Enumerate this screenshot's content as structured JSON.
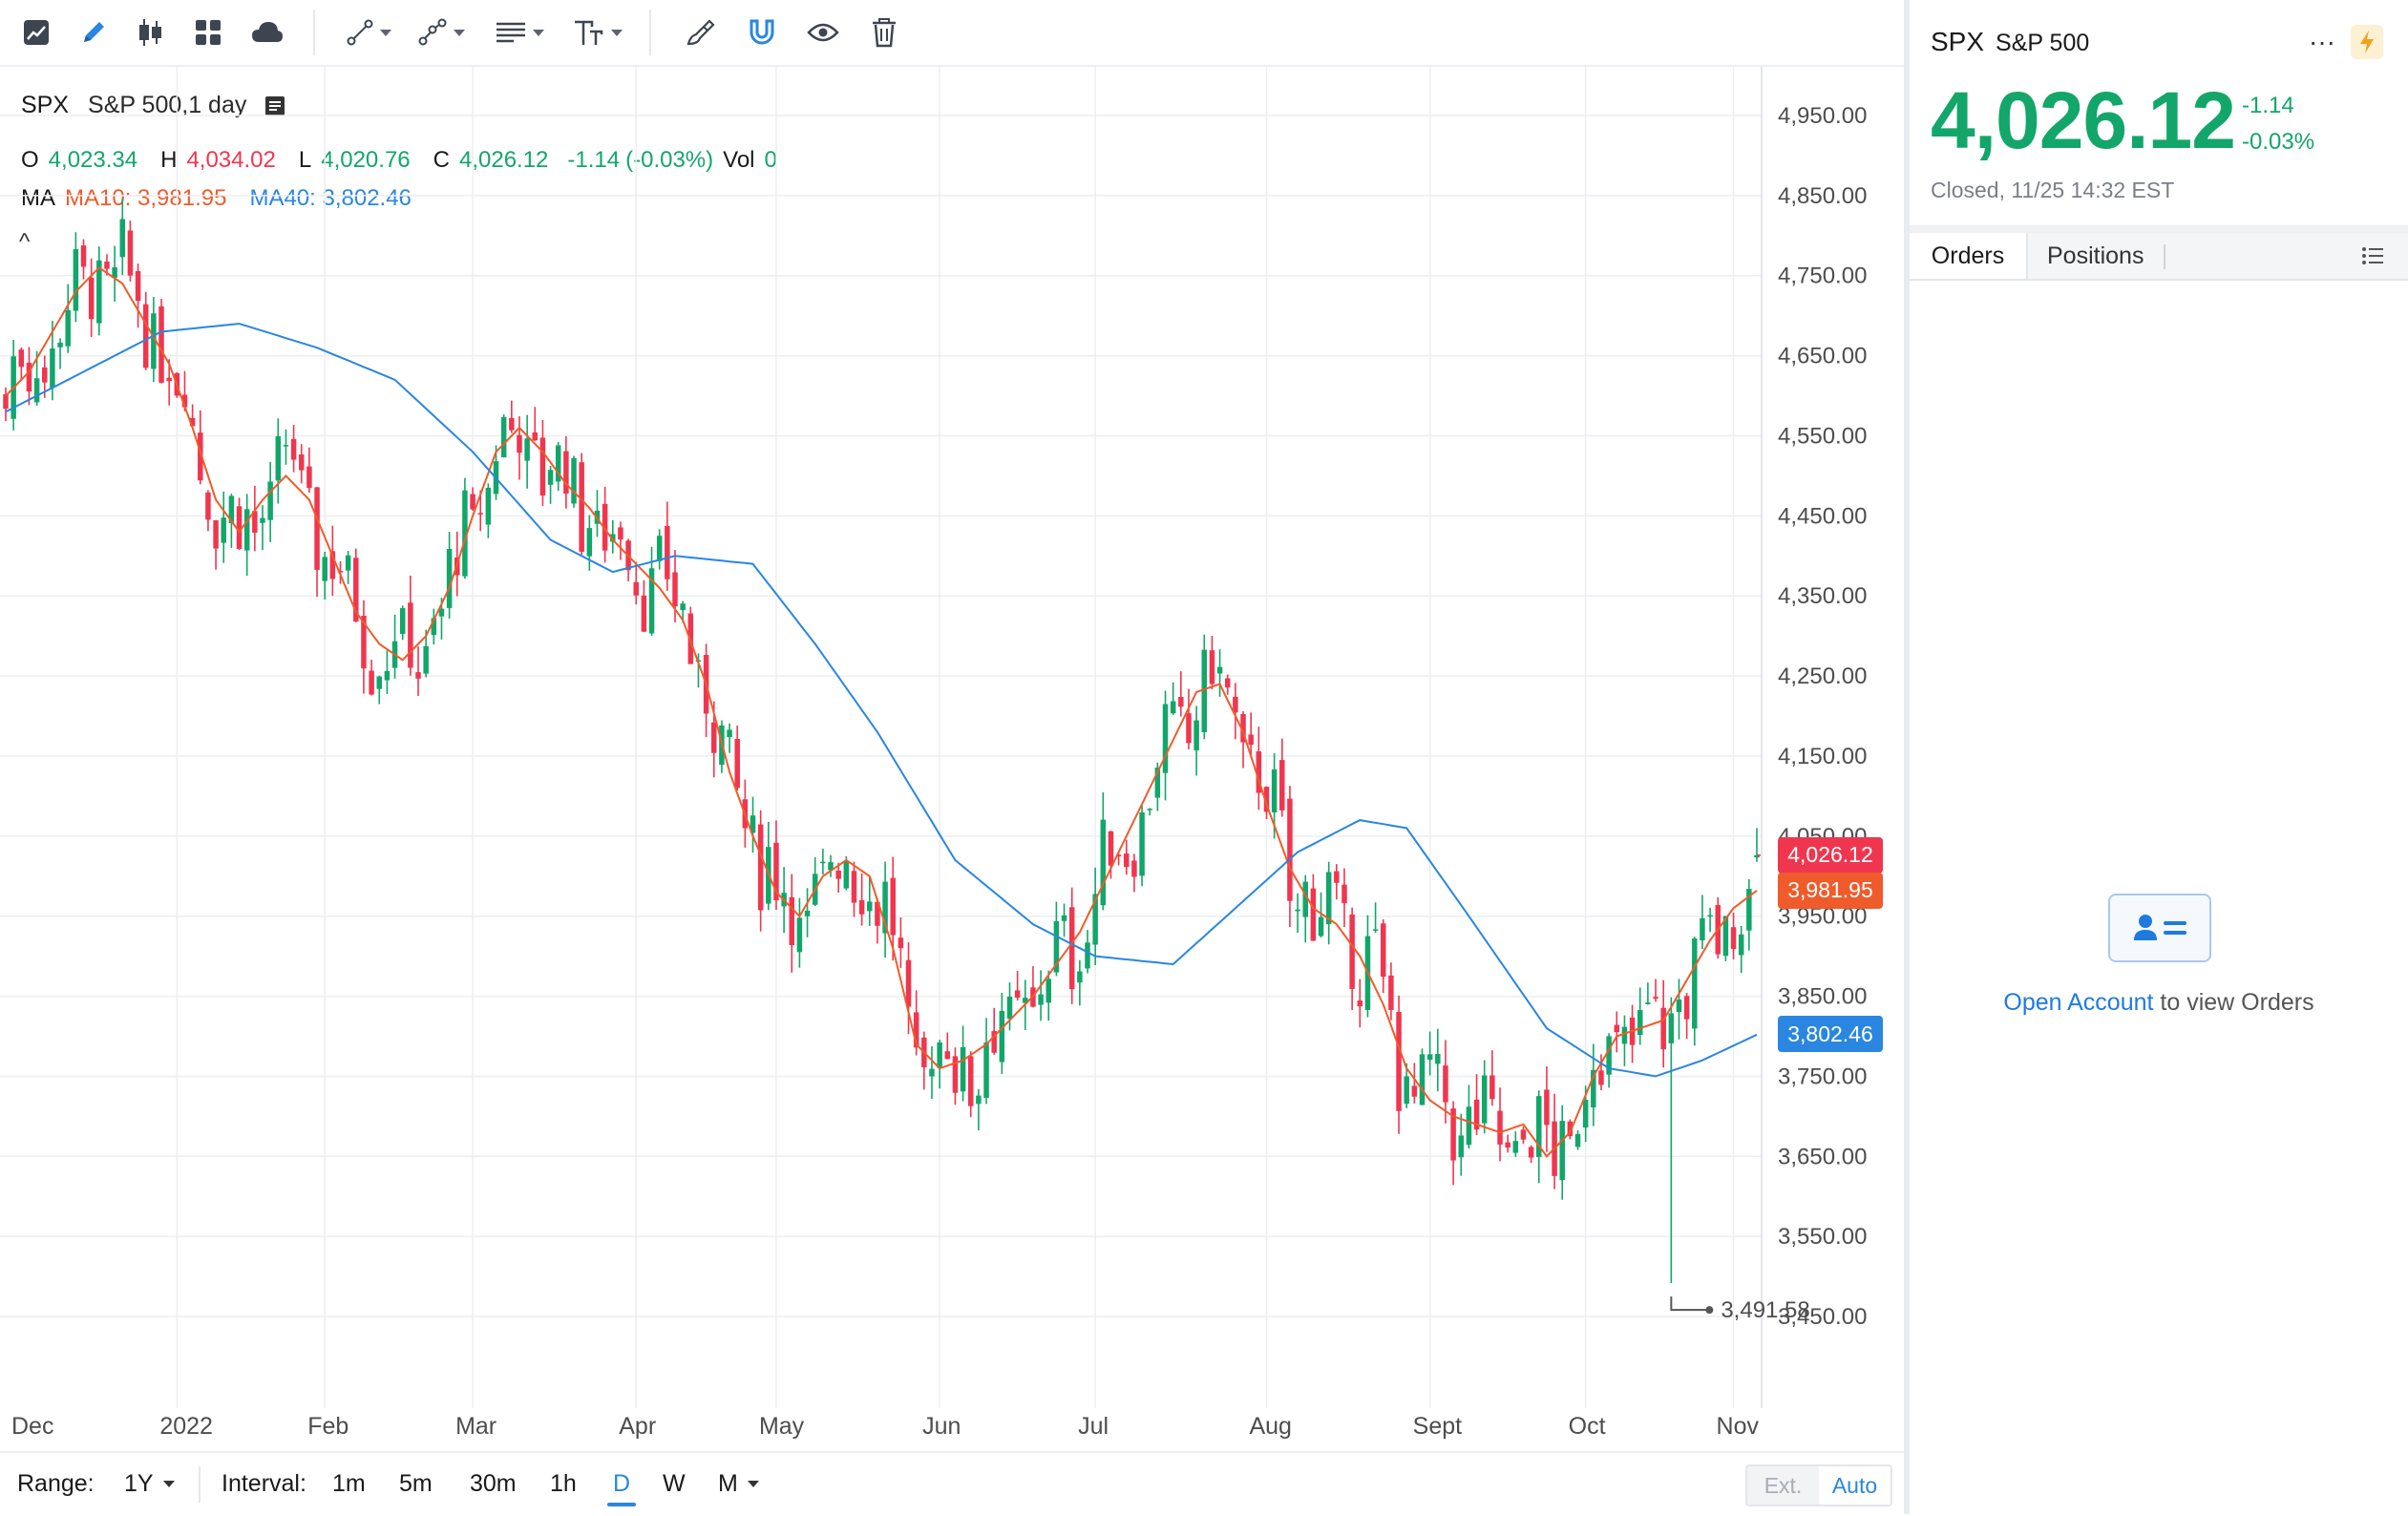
{
  "toolbar": {
    "icons": [
      "chart-type-icon",
      "draw-pencil-icon",
      "candles-icon",
      "layouts-grid-icon",
      "cloud-icon",
      "trend-line-tool-icon",
      "fib-tool-icon",
      "lines-menu-icon",
      "text-tool-icon",
      "brush-icon",
      "magnet-icon",
      "eye-icon",
      "trash-icon"
    ]
  },
  "legend": {
    "symbol": "SPX",
    "description": "S&P 500,1 day",
    "ohlc": {
      "o_label": "O",
      "o_value": "4,023.34",
      "h_label": "H",
      "h_value": "4,034.02",
      "l_label": "L",
      "l_value": "4,020.76",
      "c_label": "C",
      "c_value": "4,026.12",
      "change": "-1.14",
      "change_pct": "(-0.03%)",
      "vol_label": "Vol",
      "vol_value": "0"
    },
    "ma": {
      "label": "MA",
      "ma10": "MA10: 3,981.95",
      "ma40": "MA40: 3,802.46"
    },
    "collapse_glyph": "^"
  },
  "price_tags": {
    "last": "4,026.12",
    "ma10": "3,981.95",
    "ma40": "3,802.46"
  },
  "low_marker": "3,491.58",
  "colors": {
    "up": "#12a66a",
    "down": "#f0364f",
    "ma10": "#ef5b2a",
    "ma40": "#2a86e0",
    "accent": "#2a86e0"
  },
  "chart_data": {
    "type": "candlestick",
    "y_ticks": [
      "4,950.00",
      "4,850.00",
      "4,750.00",
      "4,650.00",
      "4,550.00",
      "4,450.00",
      "4,350.00",
      "4,250.00",
      "4,150.00",
      "4,050.00",
      "3,950.00",
      "3,850.00",
      "3,750.00",
      "3,650.00",
      "3,550.00",
      "3,450.00"
    ],
    "y_tick_values": [
      4950,
      4850,
      4750,
      4650,
      4550,
      4450,
      4350,
      4250,
      4150,
      4050,
      3950,
      3850,
      3750,
      3650,
      3550,
      3450
    ],
    "x_ticks": [
      "Dec",
      "2022",
      "Feb",
      "Mar",
      "Apr",
      "May",
      "Jun",
      "Jul",
      "Aug",
      "Sept",
      "Oct",
      "Nov"
    ],
    "ylim": [
      3370,
      5010
    ],
    "series": [
      {
        "name": "MA10",
        "anchors": [
          [
            0,
            4600
          ],
          [
            3,
            4630
          ],
          [
            6,
            4680
          ],
          [
            9,
            4730
          ],
          [
            12,
            4760
          ],
          [
            15,
            4740
          ],
          [
            18,
            4690
          ],
          [
            21,
            4640
          ],
          [
            24,
            4560
          ],
          [
            27,
            4470
          ],
          [
            30,
            4430
          ],
          [
            33,
            4470
          ],
          [
            36,
            4500
          ],
          [
            39,
            4470
          ],
          [
            42,
            4400
          ],
          [
            45,
            4330
          ],
          [
            48,
            4290
          ],
          [
            51,
            4270
          ],
          [
            54,
            4300
          ],
          [
            57,
            4360
          ],
          [
            60,
            4450
          ],
          [
            63,
            4530
          ],
          [
            66,
            4560
          ],
          [
            69,
            4530
          ],
          [
            72,
            4490
          ],
          [
            75,
            4460
          ],
          [
            78,
            4420
          ],
          [
            81,
            4390
          ],
          [
            84,
            4360
          ],
          [
            87,
            4320
          ],
          [
            90,
            4240
          ],
          [
            93,
            4130
          ],
          [
            96,
            4050
          ],
          [
            99,
            3980
          ],
          [
            102,
            3950
          ],
          [
            105,
            4000
          ],
          [
            108,
            4020
          ],
          [
            111,
            4000
          ],
          [
            114,
            3910
          ],
          [
            117,
            3790
          ],
          [
            120,
            3760
          ],
          [
            123,
            3770
          ],
          [
            126,
            3790
          ],
          [
            129,
            3820
          ],
          [
            132,
            3850
          ],
          [
            135,
            3890
          ],
          [
            138,
            3930
          ],
          [
            141,
            3990
          ],
          [
            144,
            4050
          ],
          [
            147,
            4110
          ],
          [
            150,
            4170
          ],
          [
            153,
            4230
          ],
          [
            156,
            4240
          ],
          [
            159,
            4180
          ],
          [
            162,
            4090
          ],
          [
            165,
            4010
          ],
          [
            168,
            3960
          ],
          [
            171,
            3940
          ],
          [
            174,
            3900
          ],
          [
            177,
            3840
          ],
          [
            180,
            3760
          ],
          [
            183,
            3720
          ],
          [
            186,
            3700
          ],
          [
            189,
            3690
          ],
          [
            192,
            3680
          ],
          [
            195,
            3690
          ],
          [
            198,
            3650
          ],
          [
            201,
            3680
          ],
          [
            204,
            3750
          ],
          [
            207,
            3800
          ],
          [
            210,
            3810
          ],
          [
            213,
            3820
          ],
          [
            216,
            3870
          ],
          [
            219,
            3920
          ],
          [
            222,
            3960
          ],
          [
            225,
            3982
          ]
        ]
      },
      {
        "name": "MA40",
        "anchors": [
          [
            0,
            4580
          ],
          [
            10,
            4630
          ],
          [
            20,
            4680
          ],
          [
            30,
            4690
          ],
          [
            40,
            4660
          ],
          [
            50,
            4620
          ],
          [
            60,
            4530
          ],
          [
            70,
            4420
          ],
          [
            78,
            4380
          ],
          [
            86,
            4400
          ],
          [
            96,
            4390
          ],
          [
            104,
            4290
          ],
          [
            112,
            4180
          ],
          [
            122,
            4020
          ],
          [
            132,
            3940
          ],
          [
            140,
            3900
          ],
          [
            150,
            3890
          ],
          [
            158,
            3960
          ],
          [
            166,
            4030
          ],
          [
            174,
            4070
          ],
          [
            180,
            4060
          ],
          [
            188,
            3950
          ],
          [
            198,
            3810
          ],
          [
            206,
            3760
          ],
          [
            212,
            3750
          ],
          [
            218,
            3770
          ],
          [
            225,
            3802
          ]
        ]
      }
    ],
    "last_close": 4026.12,
    "ma10_last": 3981.95,
    "ma40_last": 3802.46,
    "low": 3491.58,
    "legend_position": "top-left",
    "grid": true
  },
  "bottom_bar": {
    "range_label": "Range:",
    "range_value": "1Y",
    "interval_label": "Interval:",
    "intervals": [
      "1m",
      "5m",
      "30m",
      "1h",
      "D",
      "W",
      "M"
    ],
    "active_interval": "D",
    "ext": "Ext.",
    "auto": "Auto"
  },
  "quote": {
    "symbol": "SPX",
    "name": "S&P 500",
    "price": "4,026.12",
    "change": "-1.14",
    "change_pct": "-0.03%",
    "status": "Closed, 11/25 14:32 EST",
    "more": "···"
  },
  "tabs": {
    "orders": "Orders",
    "positions": "Positions"
  },
  "orders_empty": {
    "link": "Open Account",
    "rest": " to view Orders"
  }
}
